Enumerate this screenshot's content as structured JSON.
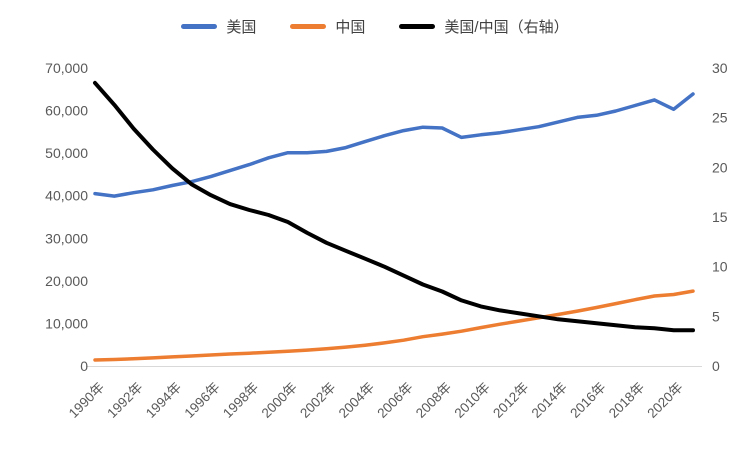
{
  "chart_data": {
    "type": "line",
    "title": "",
    "x": [
      1990,
      1991,
      1992,
      1993,
      1994,
      1995,
      1996,
      1997,
      1998,
      1999,
      2000,
      2001,
      2002,
      2003,
      2004,
      2005,
      2006,
      2007,
      2008,
      2009,
      2010,
      2011,
      2012,
      2013,
      2014,
      2015,
      2016,
      2017,
      2018,
      2019,
      2020,
      2021
    ],
    "series": [
      {
        "id": "us",
        "name": "美国",
        "axis": "left",
        "color": "#4472C4",
        "values": [
          40500,
          39900,
          40700,
          41400,
          42400,
          43300,
          44500,
          45900,
          47300,
          48900,
          50100,
          50100,
          50400,
          51300,
          52700,
          54100,
          55300,
          56100,
          55900,
          53700,
          54300,
          54800,
          55500,
          56200,
          57300,
          58400,
          58900,
          59900,
          61200,
          62500,
          60300,
          63900
        ]
      },
      {
        "id": "china",
        "name": "中国",
        "axis": "left",
        "color": "#ED7D31",
        "values": [
          1420,
          1520,
          1700,
          1900,
          2130,
          2360,
          2580,
          2810,
          3010,
          3220,
          3460,
          3730,
          4060,
          4440,
          4880,
          5430,
          6060,
          6880,
          7500,
          8180,
          9010,
          9820,
          10560,
          11320,
          12100,
          12900,
          13740,
          14650,
          15580,
          16450,
          16800,
          17600
        ]
      },
      {
        "id": "ratio",
        "name": "美国/中国（右轴）",
        "axis": "right",
        "color": "#000000",
        "values": [
          28.5,
          26.3,
          23.9,
          21.8,
          19.9,
          18.3,
          17.2,
          16.3,
          15.7,
          15.2,
          14.5,
          13.4,
          12.4,
          11.6,
          10.8,
          10.0,
          9.1,
          8.2,
          7.5,
          6.6,
          6.0,
          5.6,
          5.3,
          5.0,
          4.7,
          4.5,
          4.3,
          4.1,
          3.9,
          3.8,
          3.6,
          3.6
        ]
      }
    ],
    "left_axis": {
      "min": 0,
      "max": 70000,
      "step": 10000,
      "tick_labels": [
        "0",
        "10,000",
        "20,000",
        "30,000",
        "40,000",
        "50,000",
        "60,000",
        "70,000"
      ]
    },
    "right_axis": {
      "min": 0,
      "max": 30,
      "step": 5,
      "tick_labels": [
        "0",
        "5",
        "10",
        "15",
        "20",
        "25",
        "30"
      ]
    },
    "x_tick_years": [
      1990,
      1992,
      1994,
      1996,
      1998,
      2000,
      2002,
      2004,
      2006,
      2008,
      2010,
      2012,
      2014,
      2016,
      2018,
      2020
    ],
    "x_tick_labels": [
      "1990年",
      "1992年",
      "1994年",
      "1996年",
      "1998年",
      "2000年",
      "2002年",
      "2004年",
      "2006年",
      "2008年",
      "2010年",
      "2012年",
      "2014年",
      "2016年",
      "2018年",
      "2020年"
    ],
    "legend_position": "top",
    "grid": false,
    "axis_label_color": "#595959",
    "axis_line_color": "#D9D9D9"
  }
}
